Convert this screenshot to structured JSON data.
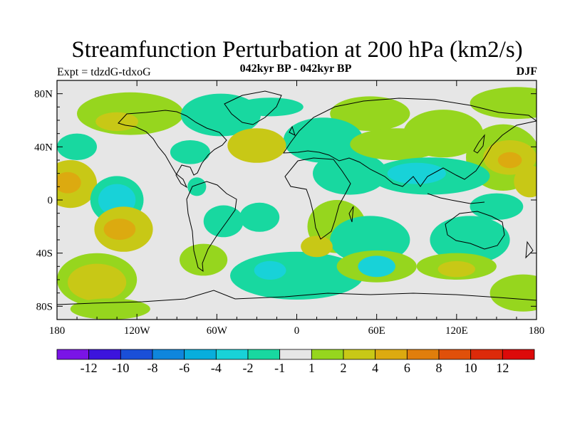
{
  "chart_data": {
    "type": "heatmap",
    "title": "Streamfunction Perturbation at 200 hPa (km2/s)",
    "subtitle_left": "Expt = tdzdG-tdxoG",
    "subtitle_center": "042kyr BP - 042kyr BP",
    "subtitle_right": "DJF",
    "x_axis": {
      "range": [
        -180,
        180
      ],
      "ticks": [
        -180,
        -120,
        -60,
        0,
        60,
        120,
        180
      ],
      "tick_labels": [
        "180",
        "120W",
        "60W",
        "0",
        "60E",
        "120E",
        "180"
      ]
    },
    "y_axis": {
      "range": [
        -90,
        90
      ],
      "ticks": [
        80,
        40,
        0,
        -40,
        -80
      ],
      "tick_labels": [
        "80N",
        "40N",
        "0",
        "40S",
        "80S"
      ]
    },
    "colorbar": {
      "levels": [
        -12,
        -10,
        -8,
        -6,
        -4,
        -2,
        -1,
        1,
        2,
        4,
        6,
        8,
        10,
        12
      ],
      "labels": [
        "-12",
        "-10",
        "-8",
        "-6",
        "-4",
        "-2",
        "-1",
        "1",
        "2",
        "4",
        "6",
        "8",
        "10",
        "12"
      ],
      "colors": [
        "#7a14e6",
        "#3c14dc",
        "#1a4fd8",
        "#0f86dc",
        "#08aedc",
        "#18d2d8",
        "#18d8a0",
        "#e6e6e6",
        "#96d61e",
        "#c8c816",
        "#dcaa10",
        "#e07e0c",
        "#e0500a",
        "#dc2a0a",
        "#dc0a0a"
      ]
    },
    "anomalies": [
      {
        "lon": 165,
        "lat": 73,
        "rx": 35,
        "ry": 12,
        "value": 1.5
      },
      {
        "lon": -125,
        "lat": 65,
        "rx": 40,
        "ry": 16,
        "value": 1.5
      },
      {
        "lon": -135,
        "lat": 59,
        "rx": 16,
        "ry": 7,
        "value": 3
      },
      {
        "lon": -57,
        "lat": 64,
        "rx": 30,
        "ry": 16,
        "value": -1.5
      },
      {
        "lon": -20,
        "lat": 70,
        "rx": 25,
        "ry": 7,
        "value": -1.5
      },
      {
        "lon": 55,
        "lat": 65,
        "rx": 30,
        "ry": 13,
        "value": 1.5
      },
      {
        "lon": 20,
        "lat": 45,
        "rx": 30,
        "ry": 17,
        "value": -1.5
      },
      {
        "lon": -30,
        "lat": 41,
        "rx": 22,
        "ry": 13,
        "value": 2
      },
      {
        "lon": -30,
        "lat": 41,
        "rx": 10,
        "ry": 5,
        "value": 3
      },
      {
        "lon": -80,
        "lat": 36,
        "rx": 15,
        "ry": 9,
        "value": -1.5
      },
      {
        "lon": -165,
        "lat": 40,
        "rx": 15,
        "ry": 10,
        "value": -1.5
      },
      {
        "lon": 40,
        "lat": 20,
        "rx": 28,
        "ry": 16,
        "value": -1.5
      },
      {
        "lon": 75,
        "lat": 42,
        "rx": 35,
        "ry": 12,
        "value": 1.5
      },
      {
        "lon": 110,
        "lat": 50,
        "rx": 30,
        "ry": 18,
        "value": 1.5
      },
      {
        "lon": 155,
        "lat": 32,
        "rx": 28,
        "ry": 25,
        "value": 1.5
      },
      {
        "lon": 160,
        "lat": 32,
        "rx": 20,
        "ry": 13,
        "value": 3
      },
      {
        "lon": 160,
        "lat": 30,
        "rx": 9,
        "ry": 6,
        "value": 5
      },
      {
        "lon": 100,
        "lat": 18,
        "rx": 45,
        "ry": 14,
        "value": -1.5
      },
      {
        "lon": 90,
        "lat": 20,
        "rx": 22,
        "ry": 8,
        "value": -3
      },
      {
        "lon": 175,
        "lat": 14,
        "rx": 12,
        "ry": 12,
        "value": 2
      },
      {
        "lon": -170,
        "lat": 12,
        "rx": 20,
        "ry": 18,
        "value": 2
      },
      {
        "lon": -172,
        "lat": 13,
        "rx": 10,
        "ry": 8,
        "value": 5
      },
      {
        "lon": -135,
        "lat": 0,
        "rx": 20,
        "ry": 18,
        "value": -1.5
      },
      {
        "lon": -135,
        "lat": 0,
        "rx": 14,
        "ry": 12,
        "value": -3
      },
      {
        "lon": -130,
        "lat": -22,
        "rx": 22,
        "ry": 17,
        "value": 2
      },
      {
        "lon": -133,
        "lat": -22,
        "rx": 12,
        "ry": 8,
        "value": 5
      },
      {
        "lon": -55,
        "lat": -16,
        "rx": 15,
        "ry": 12,
        "value": -1.5
      },
      {
        "lon": -28,
        "lat": -13,
        "rx": 15,
        "ry": 11,
        "value": -1.5
      },
      {
        "lon": -75,
        "lat": 10,
        "rx": 7,
        "ry": 7,
        "value": -1.5
      },
      {
        "lon": 30,
        "lat": -20,
        "rx": 22,
        "ry": 20,
        "value": 1.5
      },
      {
        "lon": 55,
        "lat": -30,
        "rx": 30,
        "ry": 18,
        "value": -1.5
      },
      {
        "lon": 130,
        "lat": -30,
        "rx": 30,
        "ry": 18,
        "value": -1.5
      },
      {
        "lon": 150,
        "lat": -5,
        "rx": 20,
        "ry": 10,
        "value": -1.5
      },
      {
        "lon": -70,
        "lat": -45,
        "rx": 18,
        "ry": 12,
        "value": 1.5
      },
      {
        "lon": -150,
        "lat": -60,
        "rx": 30,
        "ry": 20,
        "value": 1.5
      },
      {
        "lon": -150,
        "lat": -62,
        "rx": 22,
        "ry": 14,
        "value": 3
      },
      {
        "lon": 0,
        "lat": -57,
        "rx": 50,
        "ry": 18,
        "value": -1.5
      },
      {
        "lon": -20,
        "lat": -53,
        "rx": 12,
        "ry": 7,
        "value": -3
      },
      {
        "lon": 60,
        "lat": -50,
        "rx": 30,
        "ry": 12,
        "value": 1.5
      },
      {
        "lon": 60,
        "lat": -50,
        "rx": 14,
        "ry": 8,
        "value": -3
      },
      {
        "lon": 120,
        "lat": -50,
        "rx": 30,
        "ry": 10,
        "value": 1.5
      },
      {
        "lon": 120,
        "lat": -52,
        "rx": 14,
        "ry": 6,
        "value": 3
      },
      {
        "lon": 170,
        "lat": -70,
        "rx": 25,
        "ry": 14,
        "value": 1.5
      },
      {
        "lon": 15,
        "lat": -35,
        "rx": 12,
        "ry": 8,
        "value": 3
      },
      {
        "lon": -140,
        "lat": -82,
        "rx": 30,
        "ry": 8,
        "value": 1.5
      }
    ]
  }
}
